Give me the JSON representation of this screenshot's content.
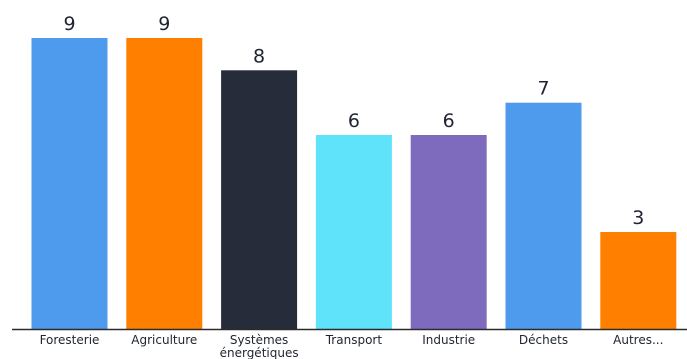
{
  "chart_data": {
    "type": "bar",
    "categories": [
      "Foresterie",
      "Agriculture",
      "Systèmes énergétiques",
      "Transport",
      "Industrie",
      "Déchets",
      "Autres..."
    ],
    "category_lines": [
      [
        "Foresterie"
      ],
      [
        "Agriculture"
      ],
      [
        "Systèmes",
        "énergétiques"
      ],
      [
        "Transport"
      ],
      [
        "Industrie"
      ],
      [
        "Déchets"
      ],
      [
        "Autres..."
      ]
    ],
    "values": [
      9,
      9,
      8,
      6,
      6,
      7,
      3
    ],
    "colors": [
      "#4e9bed",
      "#ff7f00",
      "#262c3a",
      "#5ee3fb",
      "#7f6bbe",
      "#4e9bed",
      "#ff7f00"
    ],
    "ylim": [
      0,
      9
    ],
    "grid": false,
    "legend": "none",
    "axis_color": "#2b2b2b"
  }
}
